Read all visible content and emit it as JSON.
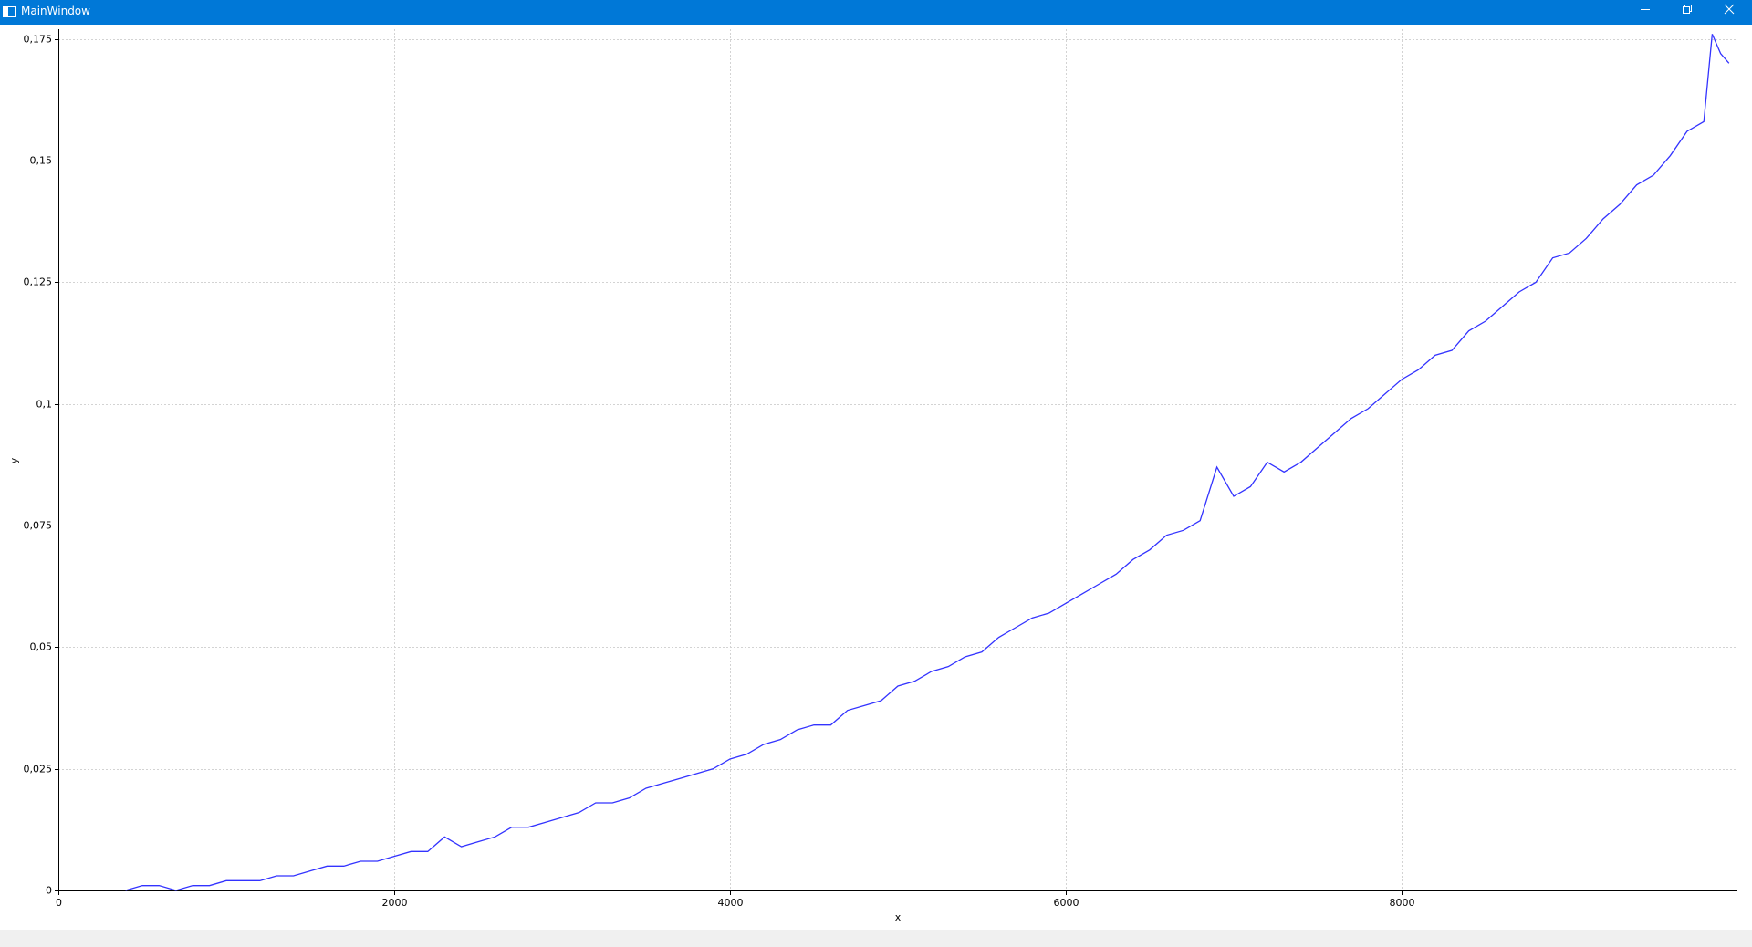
{
  "window": {
    "title": "MainWindow"
  },
  "chart_data": {
    "type": "line",
    "x_label": "x",
    "y_label": "y",
    "color": "#3333ff",
    "grid": true,
    "xlim": [
      0,
      10000
    ],
    "ylim": [
      0,
      0.177
    ],
    "xticks": [
      0,
      2000,
      4000,
      6000,
      8000
    ],
    "yticks": [
      0,
      {
        "value": 0.025,
        "label": "0,025"
      },
      {
        "value": 0.05,
        "label": "0,05"
      },
      {
        "value": 0.075,
        "label": "0,075"
      },
      {
        "value": 0.1,
        "label": "0,1"
      },
      {
        "value": 0.125,
        "label": "0,125"
      },
      {
        "value": 0.15,
        "label": "0,15"
      },
      {
        "value": 0.175,
        "label": "0,175"
      }
    ],
    "x": [
      400,
      500,
      600,
      700,
      800,
      900,
      1000,
      1100,
      1200,
      1300,
      1400,
      1500,
      1600,
      1700,
      1800,
      1900,
      2000,
      2100,
      2200,
      2300,
      2400,
      2500,
      2600,
      2700,
      2800,
      2900,
      3000,
      3100,
      3200,
      3300,
      3400,
      3500,
      3600,
      3700,
      3800,
      3900,
      4000,
      4100,
      4200,
      4300,
      4400,
      4500,
      4600,
      4700,
      4800,
      4900,
      5000,
      5100,
      5200,
      5300,
      5400,
      5500,
      5600,
      5700,
      5800,
      5900,
      6000,
      6100,
      6200,
      6300,
      6400,
      6500,
      6600,
      6700,
      6800,
      6900,
      7000,
      7100,
      7200,
      7300,
      7400,
      7500,
      7600,
      7700,
      7800,
      7900,
      8000,
      8100,
      8200,
      8300,
      8400,
      8500,
      8600,
      8700,
      8800,
      8900,
      9000,
      9100,
      9200,
      9300,
      9400,
      9500,
      9600,
      9700,
      9800,
      9850,
      9900,
      9950
    ],
    "values": [
      0,
      0.001,
      0.001,
      0,
      0.001,
      0.001,
      0.002,
      0.002,
      0.002,
      0.003,
      0.003,
      0.004,
      0.005,
      0.005,
      0.006,
      0.006,
      0.007,
      0.008,
      0.008,
      0.011,
      0.009,
      0.01,
      0.011,
      0.013,
      0.013,
      0.014,
      0.015,
      0.016,
      0.018,
      0.018,
      0.019,
      0.021,
      0.022,
      0.023,
      0.024,
      0.025,
      0.027,
      0.028,
      0.03,
      0.031,
      0.033,
      0.034,
      0.034,
      0.037,
      0.038,
      0.039,
      0.042,
      0.043,
      0.045,
      0.046,
      0.048,
      0.049,
      0.052,
      0.054,
      0.056,
      0.057,
      0.059,
      0.061,
      0.063,
      0.065,
      0.068,
      0.07,
      0.073,
      0.074,
      0.076,
      0.087,
      0.081,
      0.083,
      0.088,
      0.086,
      0.088,
      0.091,
      0.094,
      0.097,
      0.099,
      0.102,
      0.105,
      0.107,
      0.11,
      0.111,
      0.115,
      0.117,
      0.12,
      0.123,
      0.125,
      0.13,
      0.131,
      0.134,
      0.138,
      0.141,
      0.145,
      0.147,
      0.151,
      0.156,
      0.158,
      0.176,
      0.172,
      0.17
    ]
  }
}
